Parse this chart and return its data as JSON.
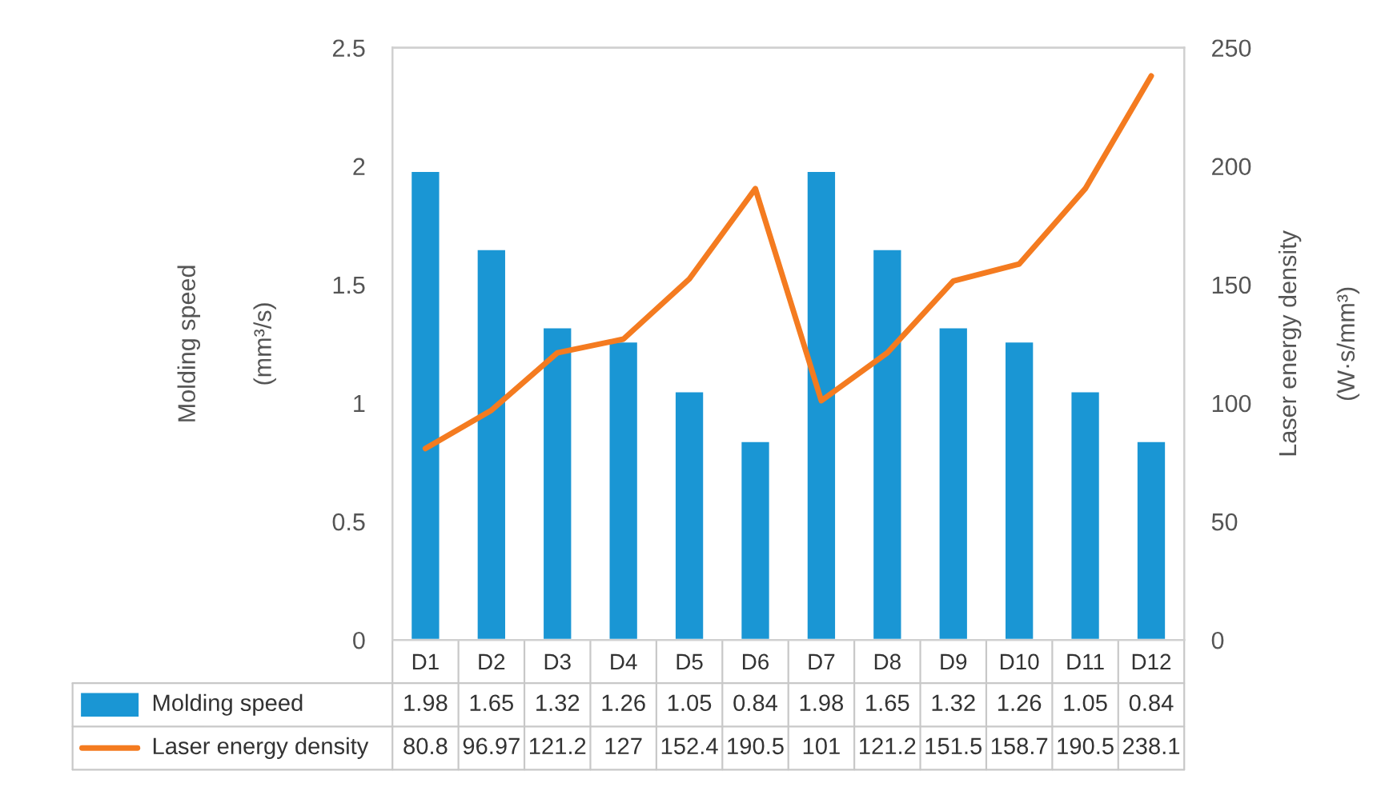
{
  "chart_data": {
    "type": "bar",
    "categories": [
      "D1",
      "D2",
      "D3",
      "D4",
      "D5",
      "D6",
      "D7",
      "D8",
      "D9",
      "D10",
      "D11",
      "D12"
    ],
    "series": [
      {
        "name": "Molding speed",
        "color": "#1a96d4",
        "values": [
          1.98,
          1.65,
          1.32,
          1.26,
          1.05,
          0.84,
          1.98,
          1.65,
          1.32,
          1.26,
          1.05,
          0.84
        ]
      },
      {
        "name": "Laser energy density",
        "type": "line",
        "axis": "y2",
        "color": "#f47b20",
        "values": [
          80.8,
          96.97,
          121.2,
          127,
          152.4,
          190.5,
          101,
          121.2,
          151.5,
          158.7,
          190.5,
          238.1
        ]
      }
    ],
    "ylabel": "Molding speed\n(mm³/s)",
    "y2label": "Laser energy density\n(W·s/mm³)",
    "ylim": [
      0,
      2.5
    ],
    "yticks": [
      0,
      0.5,
      1,
      1.5,
      2,
      2.5
    ],
    "y2lim": [
      0,
      250
    ],
    "y2ticks": [
      0,
      50,
      100,
      150,
      200,
      250
    ],
    "data_labels": true,
    "legend": "bottom",
    "grid": false
  }
}
